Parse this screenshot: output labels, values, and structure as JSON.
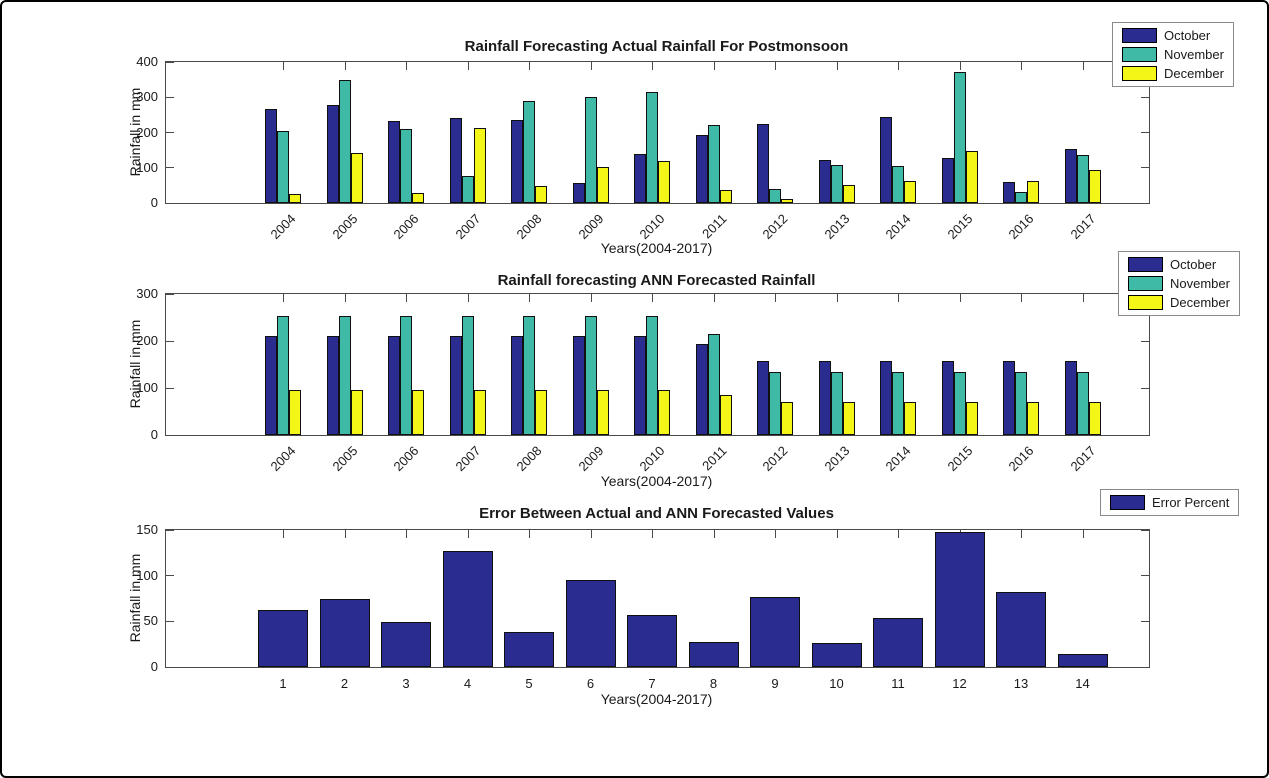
{
  "figure": {
    "axis_color": "#4a4a4a",
    "background": "#ffffff",
    "border_color": "#000000"
  },
  "chart_data": [
    {
      "type": "bar",
      "title": "Rainfall Forecasting Actual Rainfall For Postmonsoon",
      "xlabel": "Years(2004-2017)",
      "ylabel": "Rainfall in mm",
      "categories": [
        "2004",
        "2005",
        "2006",
        "2007",
        "2008",
        "2009",
        "2010",
        "2011",
        "2012",
        "2013",
        "2014",
        "2015",
        "2016",
        "2017"
      ],
      "series": [
        {
          "name": "October",
          "color": "#2a2c8f",
          "values": [
            268,
            278,
            233,
            240,
            235,
            58,
            140,
            193,
            225,
            123,
            243,
            129,
            60,
            152
          ]
        },
        {
          "name": "November",
          "color": "#3ebaa6",
          "values": [
            203,
            350,
            209,
            77,
            290,
            301,
            316,
            221,
            40,
            107,
            106,
            372,
            31,
            137
          ]
        },
        {
          "name": "December",
          "color": "#f4f617",
          "values": [
            25,
            143,
            29,
            212,
            49,
            103,
            119,
            38,
            12,
            50,
            61,
            148,
            63,
            93
          ]
        }
      ],
      "ylim": [
        0,
        400
      ],
      "yticks": [
        0,
        100,
        200,
        300,
        400
      ],
      "xtick_rotation": 45,
      "grid": false,
      "legend_position": "top-right-outside"
    },
    {
      "type": "bar",
      "title": "Rainfall forecasting ANN Forecasted Rainfall",
      "xlabel": "Years(2004-2017)",
      "ylabel": "Rainfall in mm",
      "categories": [
        "2004",
        "2005",
        "2006",
        "2007",
        "2008",
        "2009",
        "2010",
        "2011",
        "2012",
        "2013",
        "2014",
        "2015",
        "2016",
        "2017"
      ],
      "series": [
        {
          "name": "October",
          "color": "#2a2c8f",
          "values": [
            210,
            210,
            210,
            210,
            210,
            210,
            210,
            193,
            158,
            158,
            158,
            158,
            158,
            158
          ]
        },
        {
          "name": "November",
          "color": "#3ebaa6",
          "values": [
            253,
            253,
            253,
            253,
            253,
            253,
            253,
            215,
            134,
            134,
            134,
            134,
            134,
            134
          ]
        },
        {
          "name": "December",
          "color": "#f4f617",
          "values": [
            95,
            95,
            95,
            95,
            95,
            95,
            95,
            86,
            71,
            71,
            71,
            71,
            71,
            71
          ]
        }
      ],
      "ylim": [
        0,
        300
      ],
      "yticks": [
        0,
        100,
        200,
        300
      ],
      "xtick_rotation": 45,
      "grid": false,
      "legend_position": "top-right-outside"
    },
    {
      "type": "bar",
      "title": "Error Between Actual and ANN Forecasted Values",
      "xlabel": "Years(2004-2017)",
      "ylabel": "Rainfall in mm",
      "categories": [
        "1",
        "2",
        "3",
        "4",
        "5",
        "6",
        "7",
        "8",
        "9",
        "10",
        "11",
        "12",
        "13",
        "14"
      ],
      "series": [
        {
          "name": "Error Percent",
          "color": "#2a2c8f",
          "values": [
            62,
            74,
            49,
            127,
            38,
            95,
            57,
            27,
            77,
            26,
            54,
            148,
            82,
            14
          ]
        }
      ],
      "ylim": [
        0,
        150
      ],
      "yticks": [
        0,
        50,
        100,
        150
      ],
      "xtick_rotation": 0,
      "grid": false,
      "legend_position": "top-right-outside"
    }
  ]
}
